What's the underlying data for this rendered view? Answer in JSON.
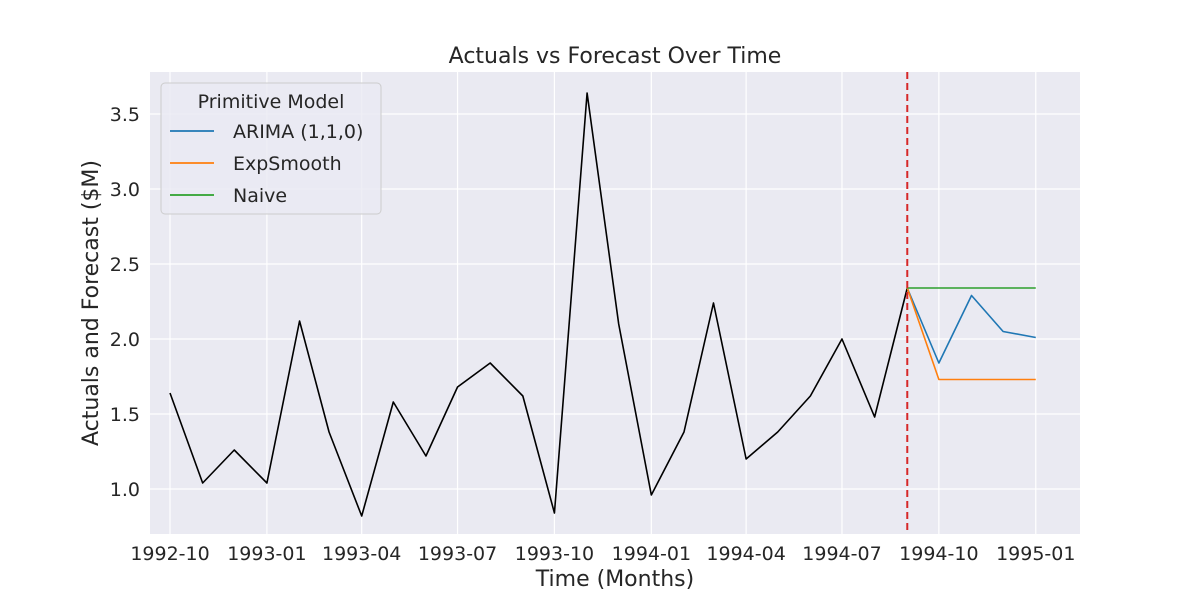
{
  "chart_data": {
    "type": "line",
    "title": "Actuals vs Forecast Over Time",
    "xlabel": "Time (Months)",
    "ylabel": "Actuals and Forecast ($M)",
    "x_ticks": [
      "1992-10",
      "1993-01",
      "1993-04",
      "1993-07",
      "1993-10",
      "1994-01",
      "1994-04",
      "1994-07",
      "1994-10",
      "1995-01"
    ],
    "y_ticks": [
      "1.0",
      "1.5",
      "2.0",
      "2.5",
      "3.0",
      "3.5"
    ],
    "ylim": [
      0.7,
      3.78
    ],
    "xlim": [
      "1992-09-12",
      "1995-02-12"
    ],
    "grid": true,
    "legend": {
      "title": "Primitive Model",
      "placement": "top-left"
    },
    "actuals": {
      "color": "#000000",
      "x": [
        "1992-10-01",
        "1992-11-01",
        "1992-12-01",
        "1993-01-01",
        "1993-02-01",
        "1993-03-01",
        "1993-04-01",
        "1993-05-01",
        "1993-06-01",
        "1993-07-01",
        "1993-08-01",
        "1993-09-01",
        "1993-10-01",
        "1993-11-01",
        "1993-12-01",
        "1994-01-01",
        "1994-02-01",
        "1994-03-01",
        "1994-04-01",
        "1994-05-01",
        "1994-06-01",
        "1994-07-01",
        "1994-08-01",
        "1994-09-01"
      ],
      "y": [
        1.64,
        1.04,
        1.26,
        1.04,
        2.12,
        1.38,
        0.82,
        1.58,
        1.22,
        1.68,
        1.84,
        1.62,
        0.84,
        3.64,
        2.1,
        0.96,
        1.38,
        2.24,
        1.2,
        1.38,
        1.62,
        2.0,
        1.48,
        2.34
      ]
    },
    "series": [
      {
        "name": "ARIMA (1,1,0)",
        "color": "#1f77b4",
        "x": [
          "1994-09-01",
          "1994-10-01",
          "1994-11-01",
          "1994-12-01",
          "1995-01-01"
        ],
        "y": [
          2.34,
          1.84,
          2.29,
          2.05,
          2.01
        ]
      },
      {
        "name": "ExpSmooth",
        "color": "#ff7f0e",
        "x": [
          "1994-09-01",
          "1994-10-01",
          "1994-11-01",
          "1994-12-01",
          "1995-01-01"
        ],
        "y": [
          2.34,
          1.73,
          1.73,
          1.73,
          1.73
        ]
      },
      {
        "name": "Naive",
        "color": "#2ca02c",
        "x": [
          "1994-09-01",
          "1994-10-01",
          "1994-11-01",
          "1994-12-01",
          "1995-01-01"
        ],
        "y": [
          2.34,
          2.34,
          2.34,
          2.34,
          2.34
        ]
      }
    ],
    "vline": {
      "x": "1994-09-01",
      "color": "#d62728",
      "style": "dashed"
    }
  }
}
